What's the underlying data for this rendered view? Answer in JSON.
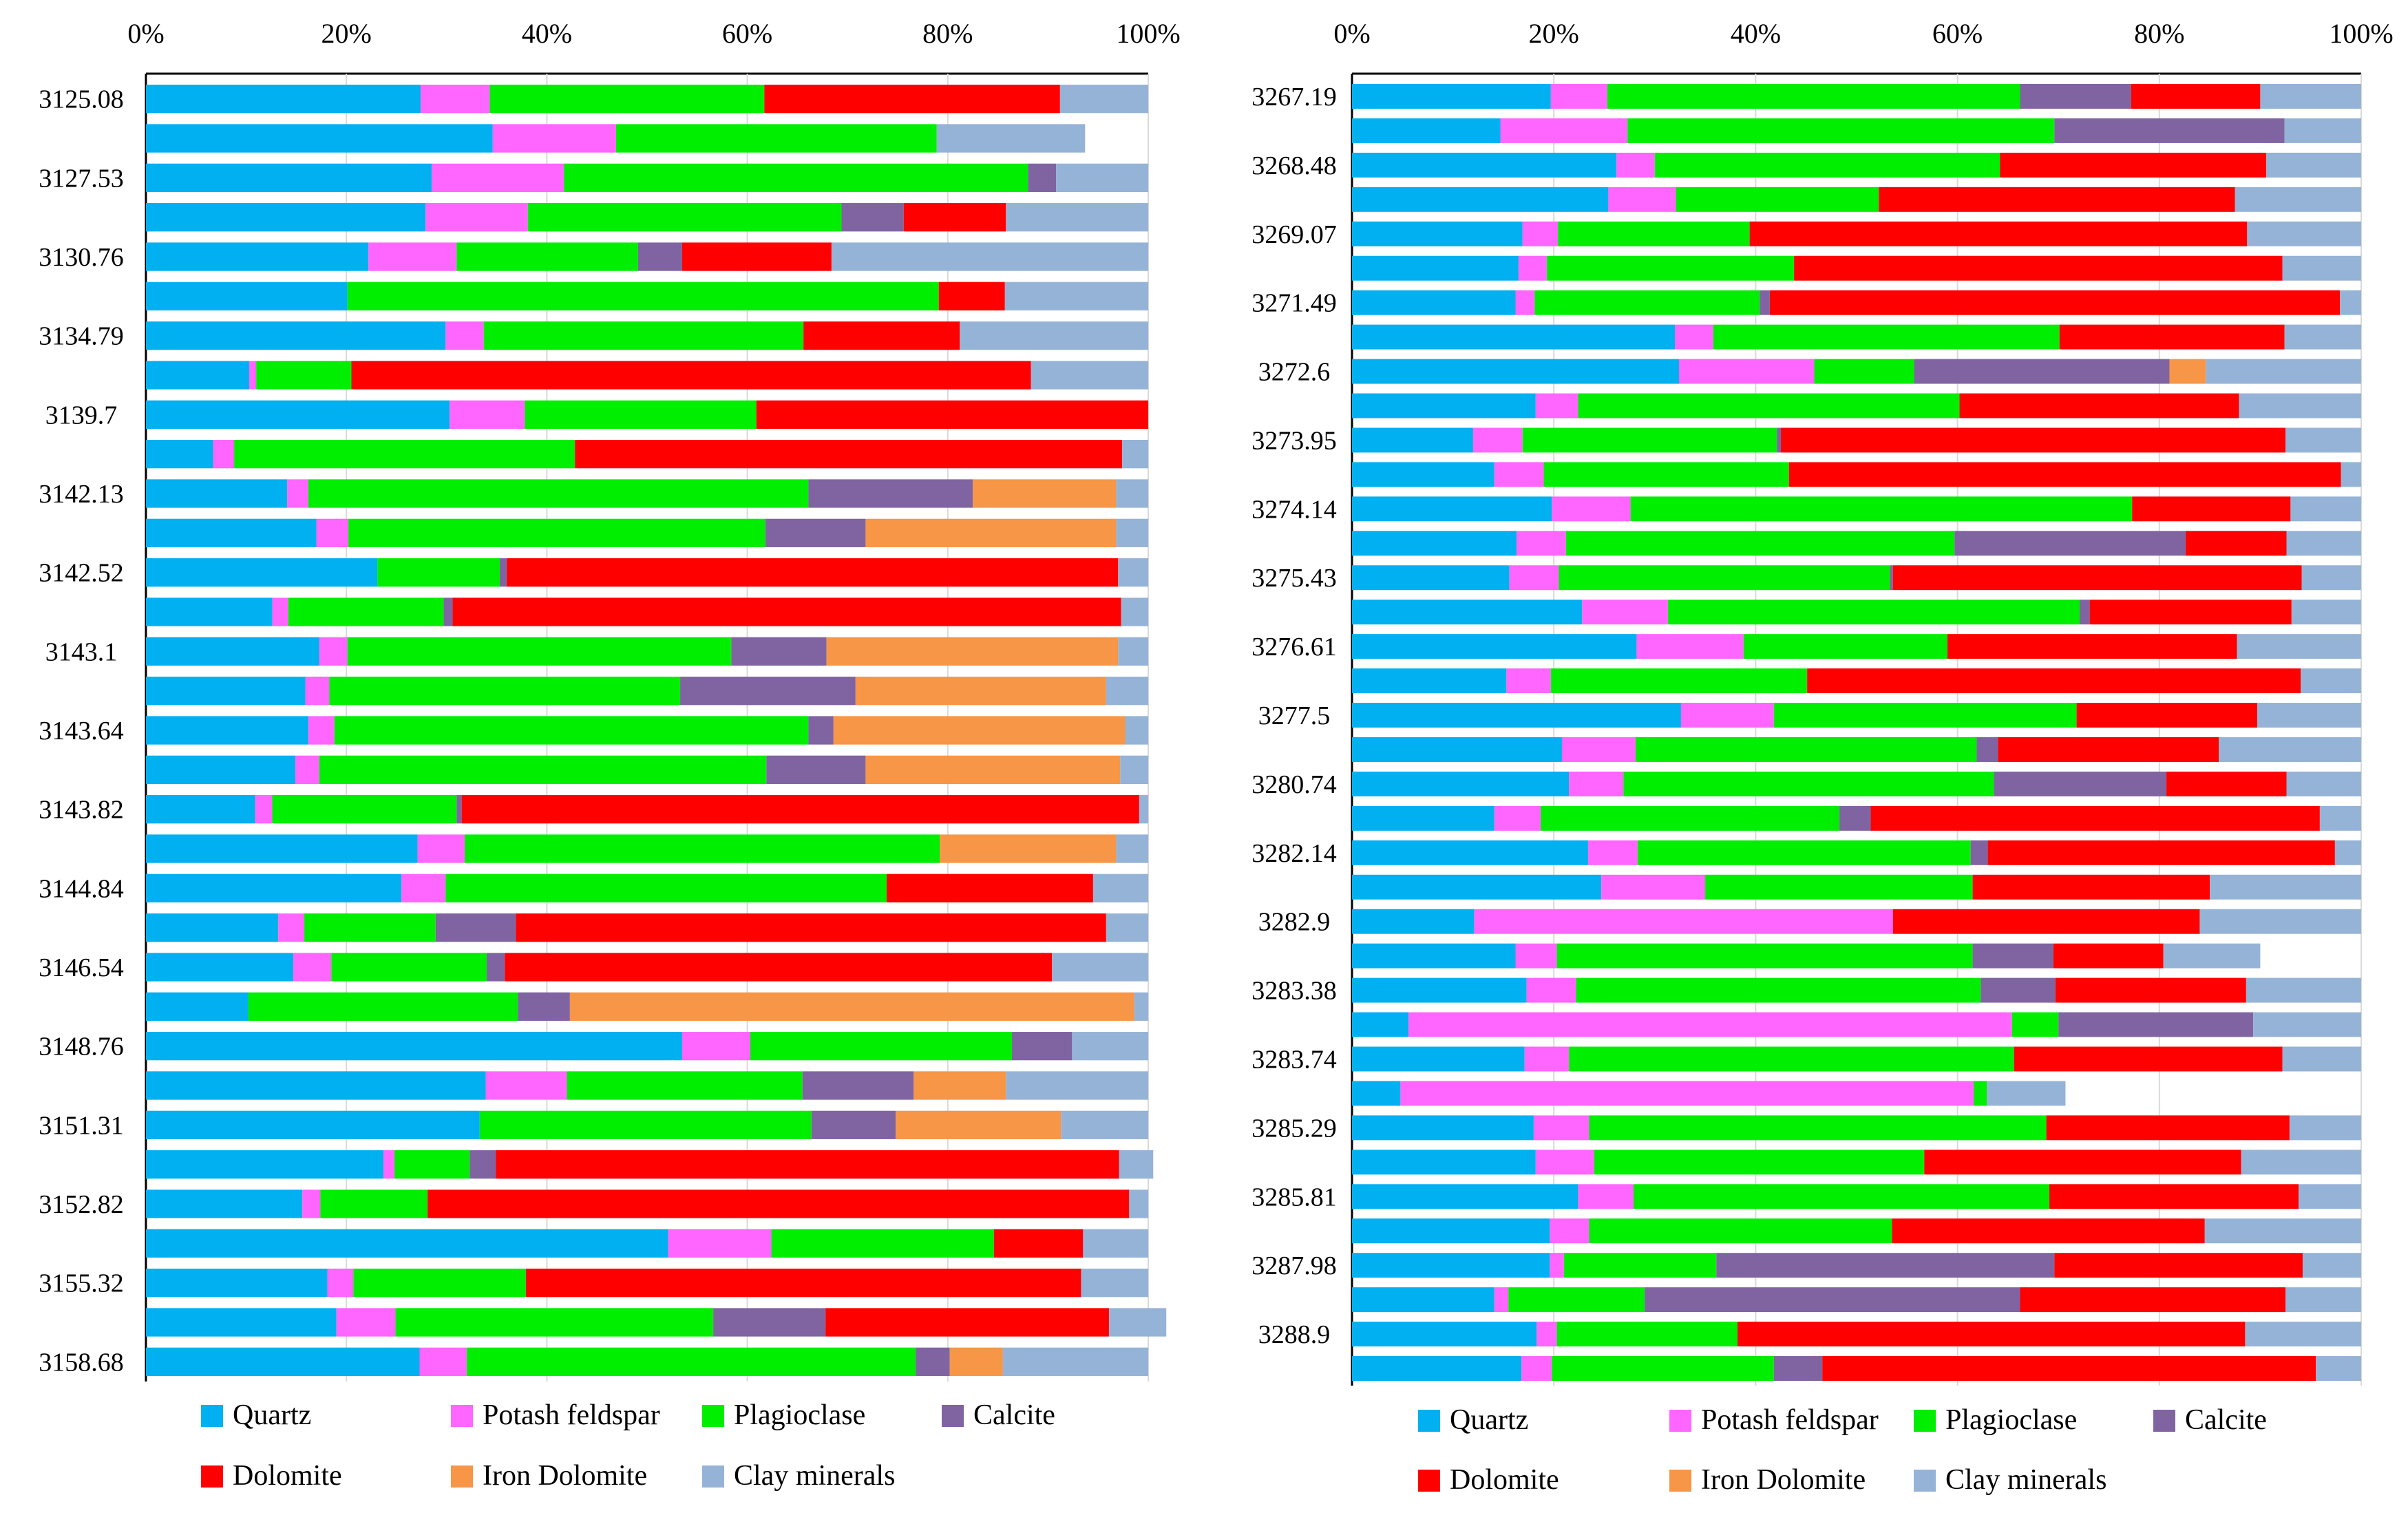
{
  "palette": {
    "Quartz": "#00b0f0",
    "Potash feldspar": "#ff66ff",
    "Plagioclase": "#00ee00",
    "Calcite": "#8064a2",
    "Dolomite": "#ff0000",
    "Iron Dolomite": "#f79646",
    "Clay minerals": "#95b3d7"
  },
  "chart_data": [
    {
      "type": "bar",
      "orientation": "horizontal",
      "stacked": "percent",
      "title": "",
      "xlabel": "",
      "ylabel": "",
      "xlim": [
        0,
        100
      ],
      "xticks": [
        "0%",
        "20%",
        "40%",
        "60%",
        "80%",
        "100%"
      ],
      "ytick_labels": [
        "3125.08",
        "3127.53",
        "3130.76",
        "3134.79",
        "3139.7",
        "3142.13",
        "3142.52",
        "3143.1",
        "3143.64",
        "3143.82",
        "3144.84",
        "3146.54",
        "3148.76",
        "3151.31",
        "3152.82",
        "3155.32",
        "3158.68"
      ],
      "legend_position": "bottom",
      "series_names": [
        "Quartz",
        "Potash feldspar",
        "Plagioclase",
        "Calcite",
        "Dolomite",
        "Iron Dolomite",
        "Clay minerals"
      ],
      "rows": [
        {
          "label": "3125.08",
          "values": [
            27.4,
            6.9,
            27.4,
            0,
            29.5,
            0,
            8.8
          ]
        },
        {
          "label": "",
          "values": [
            34.6,
            12.3,
            32.0,
            0,
            0,
            0,
            14.8
          ]
        },
        {
          "label": "3127.53",
          "values": [
            28.5,
            13.2,
            46.3,
            2.8,
            0,
            0,
            9.2
          ]
        },
        {
          "label": "",
          "values": [
            27.9,
            10.2,
            31.3,
            6.2,
            10.2,
            0,
            14.2
          ]
        },
        {
          "label": "3130.76",
          "values": [
            22.2,
            8.8,
            18.1,
            4.4,
            14.9,
            0,
            31.6
          ]
        },
        {
          "label": "",
          "values": [
            20.1,
            0,
            59.0,
            0,
            6.6,
            0,
            14.3
          ]
        },
        {
          "label": "3134.79",
          "values": [
            29.9,
            3.8,
            31.9,
            0,
            15.6,
            0,
            18.8
          ]
        },
        {
          "label": "",
          "values": [
            10.3,
            0.7,
            9.5,
            0,
            67.8,
            0,
            11.7
          ]
        },
        {
          "label": "3139.7",
          "values": [
            30.3,
            7.5,
            23.1,
            0,
            39.1,
            0,
            0
          ]
        },
        {
          "label": "",
          "values": [
            6.7,
            2.1,
            34.0,
            0,
            54.6,
            0,
            2.6
          ]
        },
        {
          "label": "3142.13",
          "values": [
            14.1,
            2.1,
            49.9,
            16.4,
            0,
            14.3,
            3.2
          ]
        },
        {
          "label": "",
          "values": [
            17.0,
            3.2,
            41.6,
            10.0,
            0,
            25.0,
            3.2
          ]
        },
        {
          "label": "3142.52",
          "values": [
            23.1,
            0,
            12.2,
            0.7,
            61.0,
            0,
            3.0
          ]
        },
        {
          "label": "",
          "values": [
            12.6,
            1.6,
            15.5,
            0.9,
            66.7,
            0,
            2.7
          ]
        },
        {
          "label": "3143.1",
          "values": [
            17.3,
            2.8,
            38.3,
            9.5,
            0,
            29.1,
            3.0
          ]
        },
        {
          "label": "",
          "values": [
            15.9,
            2.4,
            35.0,
            17.5,
            0,
            25.0,
            4.2
          ]
        },
        {
          "label": "3143.64",
          "values": [
            16.2,
            2.6,
            47.3,
            2.5,
            0,
            29.1,
            2.3
          ]
        },
        {
          "label": "",
          "values": [
            14.9,
            2.4,
            44.6,
            9.9,
            0,
            25.4,
            2.8
          ]
        },
        {
          "label": "3143.82",
          "values": [
            10.9,
            1.7,
            18.4,
            0.5,
            67.6,
            0,
            0.9
          ]
        },
        {
          "label": "",
          "values": [
            27.1,
            4.7,
            47.4,
            0,
            0,
            17.6,
            3.2
          ]
        },
        {
          "label": "3144.84",
          "values": [
            25.5,
            4.4,
            44.0,
            0,
            20.6,
            0,
            5.5
          ]
        },
        {
          "label": "",
          "values": [
            13.2,
            2.6,
            13.1,
            8.0,
            58.9,
            0,
            4.2
          ]
        },
        {
          "label": "3146.54",
          "values": [
            14.7,
            3.8,
            15.5,
            1.8,
            54.6,
            0,
            9.6
          ]
        },
        {
          "label": "",
          "values": [
            10.2,
            0,
            26.9,
            5.2,
            0,
            56.3,
            1.4
          ]
        },
        {
          "label": "3148.76",
          "values": [
            53.5,
            6.8,
            26.1,
            6.0,
            0,
            0,
            7.6
          ]
        },
        {
          "label": "",
          "values": [
            33.9,
            8.1,
            23.5,
            11.1,
            0,
            9.2,
            14.2
          ]
        },
        {
          "label": "3151.31",
          "values": [
            33.3,
            0,
            33.1,
            8.4,
            0,
            16.5,
            8.7
          ]
        },
        {
          "label": "",
          "values": [
            23.7,
            1.1,
            7.5,
            2.6,
            62.2,
            0,
            3.4
          ]
        },
        {
          "label": "3152.82",
          "values": [
            15.6,
            1.8,
            10.7,
            0,
            70.0,
            0,
            1.9
          ]
        },
        {
          "label": "",
          "values": [
            52.1,
            10.3,
            22.2,
            0,
            8.9,
            0,
            6.5
          ]
        },
        {
          "label": "3155.32",
          "values": [
            18.1,
            2.6,
            17.2,
            0,
            55.4,
            0,
            6.7
          ]
        },
        {
          "label": "",
          "values": [
            19.0,
            5.9,
            31.7,
            11.2,
            28.3,
            0,
            5.7
          ]
        },
        {
          "label": "3158.68",
          "values": [
            27.3,
            4.7,
            44.8,
            3.4,
            0,
            5.3,
            14.5
          ]
        }
      ]
    },
    {
      "type": "bar",
      "orientation": "horizontal",
      "stacked": "percent",
      "title": "",
      "xlabel": "",
      "ylabel": "",
      "xlim": [
        0,
        100
      ],
      "xticks": [
        "0%",
        "20%",
        "40%",
        "60%",
        "80%",
        "100%"
      ],
      "ytick_labels": [
        "3267.19",
        "3268.48",
        "3269.07",
        "3271.49",
        "3272.6",
        "3273.95",
        "3274.14",
        "3275.43",
        "3276.61",
        "3277.5",
        "3280.74",
        "3282.14",
        "3282.9",
        "3283.38",
        "3283.74",
        "3285.29",
        "3285.81",
        "3287.98",
        "3288.9"
      ],
      "legend_position": "bottom",
      "series_names": [
        "Quartz",
        "Potash feldspar",
        "Plagioclase",
        "Calcite",
        "Dolomite",
        "Iron Dolomite",
        "Clay minerals"
      ],
      "rows": [
        {
          "label": "3267.19",
          "values": [
            19.7,
            5.6,
            40.9,
            11.0,
            12.8,
            0,
            10.0
          ]
        },
        {
          "label": "",
          "values": [
            14.7,
            12.6,
            42.3,
            22.8,
            0,
            0,
            7.6
          ]
        },
        {
          "label": "3268.48",
          "values": [
            26.2,
            3.8,
            34.2,
            0,
            26.4,
            0,
            9.4
          ]
        },
        {
          "label": "",
          "values": [
            25.4,
            6.7,
            20.1,
            0,
            35.3,
            0,
            12.5
          ]
        },
        {
          "label": "3269.07",
          "values": [
            16.9,
            3.5,
            19.0,
            0,
            49.3,
            0,
            11.3
          ]
        },
        {
          "label": "",
          "values": [
            16.5,
            2.8,
            24.5,
            0,
            48.4,
            0,
            7.8
          ]
        },
        {
          "label": "3271.49",
          "values": [
            16.2,
            1.9,
            22.3,
            1.0,
            56.5,
            0,
            2.1
          ]
        },
        {
          "label": "",
          "values": [
            32.0,
            3.8,
            34.3,
            0,
            22.3,
            0,
            7.6
          ]
        },
        {
          "label": "3272.6",
          "values": [
            32.4,
            13.4,
            9.9,
            25.3,
            0,
            3.6,
            15.4
          ]
        },
        {
          "label": "",
          "values": [
            18.2,
            4.2,
            37.8,
            0,
            27.7,
            0,
            12.1
          ]
        },
        {
          "label": "3273.95",
          "values": [
            12.0,
            4.9,
            25.2,
            0.4,
            50.0,
            0,
            7.5
          ]
        },
        {
          "label": "",
          "values": [
            14.1,
            4.9,
            24.3,
            0,
            54.7,
            0,
            2.0
          ]
        },
        {
          "label": "3274.14",
          "values": [
            19.8,
            7.8,
            49.7,
            0,
            15.7,
            0,
            7.0
          ]
        },
        {
          "label": "",
          "values": [
            16.3,
            4.9,
            38.5,
            22.9,
            10.0,
            0,
            7.4
          ]
        },
        {
          "label": "3275.43",
          "values": [
            15.6,
            4.9,
            32.8,
            0.3,
            40.5,
            0,
            5.9
          ]
        },
        {
          "label": "",
          "values": [
            22.8,
            8.5,
            40.8,
            1.0,
            20.0,
            0,
            6.9
          ]
        },
        {
          "label": "3276.61",
          "values": [
            28.2,
            10.6,
            20.2,
            0,
            28.7,
            0,
            12.3
          ]
        },
        {
          "label": "",
          "values": [
            15.3,
            4.4,
            25.4,
            0,
            48.9,
            0,
            6.0
          ]
        },
        {
          "label": "3277.5",
          "values": [
            32.6,
            9.2,
            30.0,
            0,
            17.9,
            0,
            10.3
          ]
        },
        {
          "label": "",
          "values": [
            20.8,
            7.3,
            33.8,
            2.1,
            21.9,
            0,
            14.1
          ]
        },
        {
          "label": "3280.74",
          "values": [
            21.5,
            5.4,
            36.7,
            17.1,
            11.9,
            0,
            7.4
          ]
        },
        {
          "label": "",
          "values": [
            14.1,
            4.6,
            29.6,
            3.1,
            44.5,
            0,
            4.1
          ]
        },
        {
          "label": "3282.14",
          "values": [
            23.4,
            4.9,
            33.0,
            1.7,
            34.4,
            0,
            2.6
          ]
        },
        {
          "label": "",
          "values": [
            24.7,
            10.3,
            26.5,
            0,
            23.5,
            0,
            15.0
          ]
        },
        {
          "label": "3282.9",
          "values": [
            12.1,
            41.5,
            0,
            0,
            30.4,
            0,
            16.0
          ]
        },
        {
          "label": "",
          "values": [
            16.2,
            4.1,
            41.2,
            8.0,
            10.9,
            0,
            9.6
          ]
        },
        {
          "label": "3283.38",
          "values": [
            17.3,
            4.9,
            40.1,
            7.4,
            18.9,
            0,
            11.4
          ]
        },
        {
          "label": "",
          "values": [
            5.6,
            59.8,
            4.6,
            19.3,
            0,
            0,
            10.7
          ]
        },
        {
          "label": "3283.74",
          "values": [
            17.1,
            4.4,
            44.1,
            0,
            26.6,
            0,
            7.8
          ]
        },
        {
          "label": "",
          "values": [
            4.8,
            56.8,
            1.3,
            0,
            0,
            0,
            7.8
          ]
        },
        {
          "label": "3285.29",
          "values": [
            18.0,
            5.5,
            45.3,
            0,
            24.1,
            0,
            7.1
          ]
        },
        {
          "label": "",
          "values": [
            18.2,
            5.8,
            32.7,
            0,
            31.4,
            0,
            11.9
          ]
        },
        {
          "label": "3285.81",
          "values": [
            22.4,
            5.5,
            41.2,
            0,
            24.7,
            0,
            6.2
          ]
        },
        {
          "label": "",
          "values": [
            19.6,
            3.9,
            30.0,
            0,
            31.0,
            0,
            15.5
          ]
        },
        {
          "label": "3287.98",
          "values": [
            19.6,
            1.4,
            15.1,
            33.5,
            24.6,
            0,
            5.8
          ]
        },
        {
          "label": "",
          "values": [
            14.1,
            1.4,
            13.5,
            37.2,
            26.3,
            0,
            7.5
          ]
        },
        {
          "label": "3288.9",
          "values": [
            18.3,
            2.0,
            17.9,
            0,
            50.3,
            0,
            11.5
          ]
        },
        {
          "label": "",
          "values": [
            16.8,
            3.0,
            22.0,
            4.8,
            48.9,
            0,
            4.5
          ]
        }
      ]
    }
  ]
}
